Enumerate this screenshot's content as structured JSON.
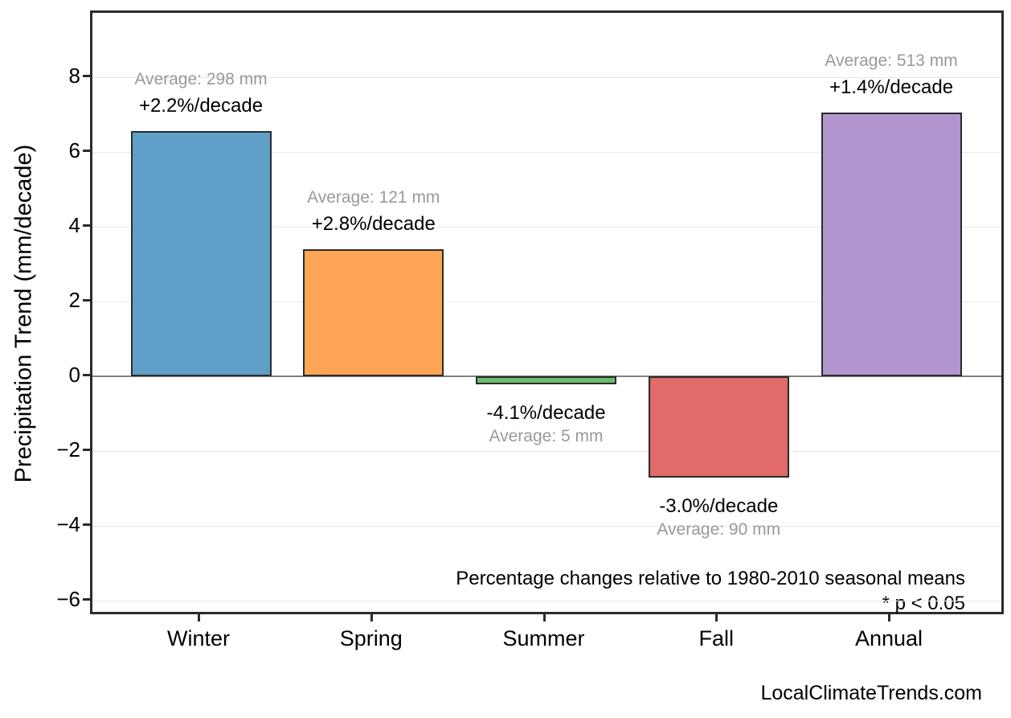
{
  "page": {
    "attribution": "LocalClimateTrends.com"
  },
  "chart_data": {
    "type": "bar",
    "title": "",
    "xlabel": "",
    "ylabel": "Precipitation Trend (mm/decade)",
    "categories": [
      "Winter",
      "Spring",
      "Summer",
      "Fall",
      "Annual"
    ],
    "values": [
      6.56,
      3.39,
      -0.21,
      -2.7,
      7.05
    ],
    "percent_labels": [
      "+2.2%/decade",
      "+2.8%/decade",
      "-4.1%/decade",
      "-3.0%/decade",
      "+1.4%/decade"
    ],
    "average_labels": [
      "Average: 298 mm",
      "Average: 121 mm",
      "Average: 5 mm",
      "Average: 90 mm",
      "Average: 513 mm"
    ],
    "averages_mm": [
      298,
      121,
      5,
      90,
      513
    ],
    "bar_colors": [
      "#5F9FC8",
      "#FFA556",
      "#6BBC6B",
      "#E16A6A",
      "#B294CF"
    ],
    "bar_edge_color": "#2b2b2b",
    "yticks": [
      8,
      6,
      4,
      2,
      0,
      -2,
      -4,
      -6
    ],
    "ylim": [
      -6.3,
      9.72
    ],
    "grid": true,
    "grid_color": "#e8e8e8",
    "zero_line_color": "#808080",
    "legend": "none",
    "annotations": [
      "Percentage changes relative to 1980-2010 seasonal means",
      "* p < 0.05"
    ]
  }
}
